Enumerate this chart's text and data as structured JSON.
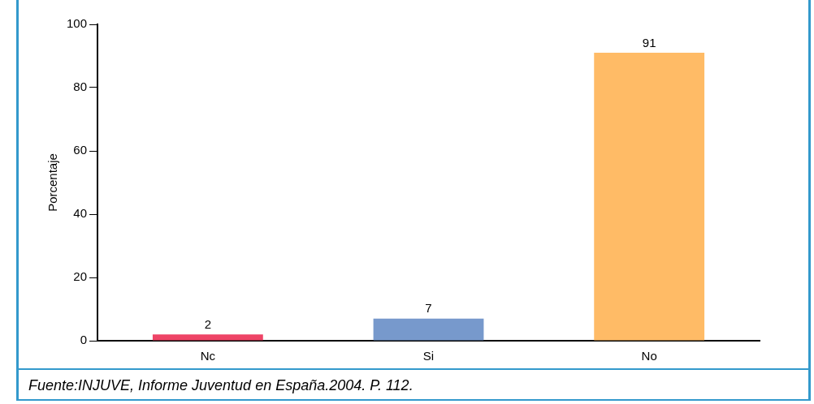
{
  "chart_data": {
    "type": "bar",
    "ylabel": "Porcentaje",
    "categories": [
      "Nc",
      "Si",
      "No"
    ],
    "values": [
      2,
      7,
      91
    ],
    "colors": [
      "#ee4466",
      "#7799cc",
      "#ffbb66"
    ],
    "ylim": [
      0,
      100
    ],
    "yticks": [
      0,
      20,
      40,
      60,
      80,
      100
    ],
    "grid": false,
    "legend": false,
    "data_labels": true,
    "annotations": [
      "Fuente:INJUVE, Informe Juventud en España.2004. P. 112."
    ]
  }
}
